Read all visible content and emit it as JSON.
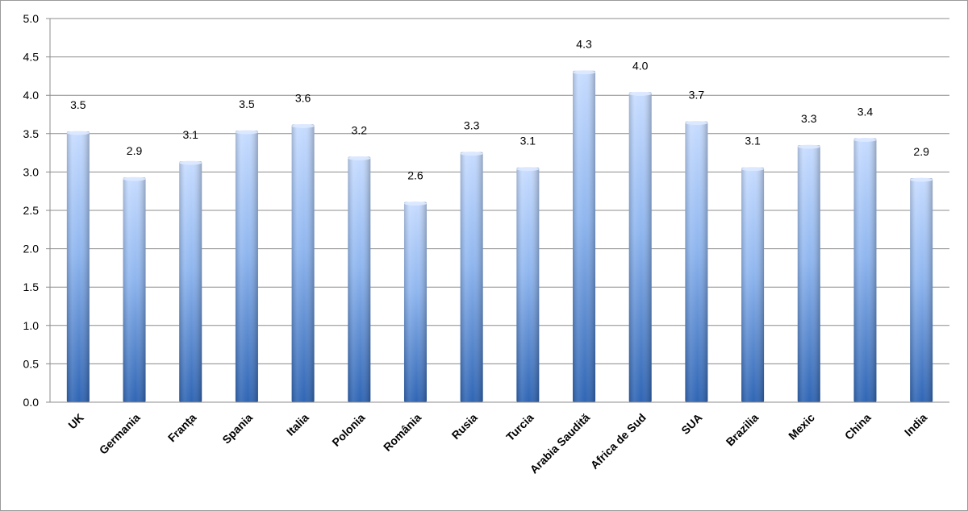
{
  "chart_data": {
    "type": "bar",
    "title": "",
    "xlabel": "",
    "ylabel": "",
    "ylim": [
      0,
      5
    ],
    "yticks": [
      "0.0",
      "0.5",
      "1.0",
      "1.5",
      "2.0",
      "2.5",
      "3.0",
      "3.5",
      "4.0",
      "4.5",
      "5.0"
    ],
    "grid": true,
    "categories": [
      "UK",
      "Germania",
      "Franța",
      "Spania",
      "Italia",
      "Polonia",
      "România",
      "Rusia",
      "Turcia",
      "Arabia Saudită",
      "Africa de Sud",
      "SUA",
      "Brazilia",
      "Mexic",
      "China",
      "India"
    ],
    "values": [
      3.53,
      2.93,
      3.14,
      3.54,
      3.62,
      3.2,
      2.61,
      3.26,
      3.06,
      4.32,
      4.04,
      3.66,
      3.06,
      3.35,
      3.44,
      2.92
    ],
    "data_labels": [
      "3.5",
      "2.9",
      "3.1",
      "3.5",
      "3.6",
      "3.2",
      "2.6",
      "3.3",
      "3.1",
      "4.3",
      "4.0",
      "3.7",
      "3.1",
      "3.3",
      "3.4",
      "2.9"
    ],
    "bar_colors": {
      "light": "#c7dcff",
      "mid": "#8fb6ef",
      "dark": "#2f65b4"
    },
    "gridline_color": "#8c8c8c"
  }
}
